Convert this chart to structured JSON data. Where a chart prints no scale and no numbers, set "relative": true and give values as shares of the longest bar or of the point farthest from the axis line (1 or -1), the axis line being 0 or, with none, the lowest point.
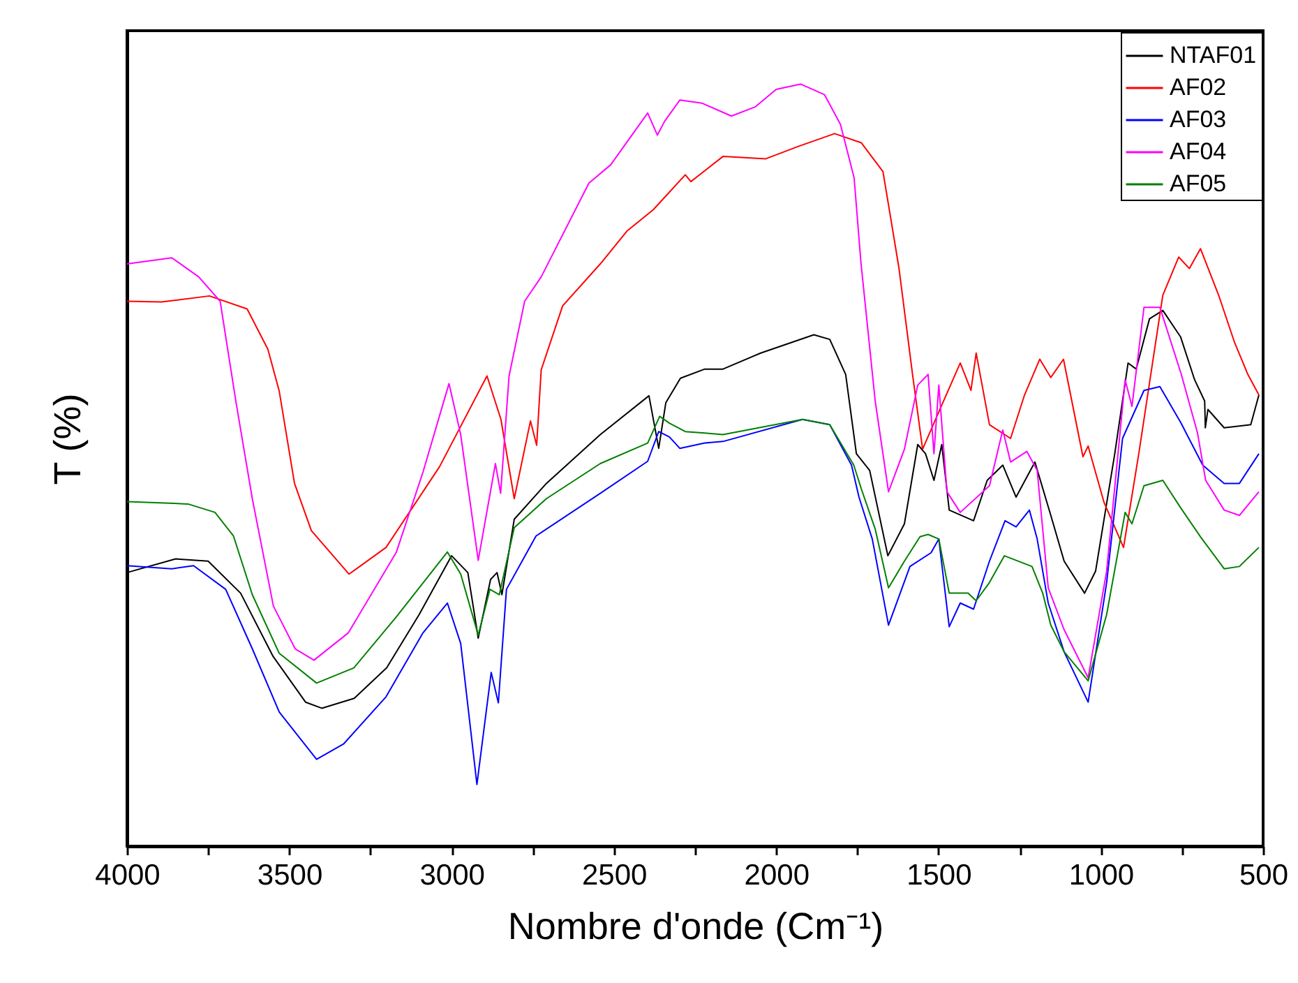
{
  "chart_data": {
    "type": "line",
    "xlabel": "Nombre d'onde (Cm⁻¹)",
    "ylabel": "T (%)",
    "relative": true,
    "grid": false,
    "legend": "top right",
    "xlim": [
      4000,
      500
    ],
    "xticks": [
      4000,
      {
        "value": 3750,
        "label": null
      },
      3500,
      {
        "value": 3250,
        "label": null
      },
      3000,
      {
        "value": 2750,
        "label": null
      },
      2500,
      {
        "value": 2250,
        "label": null
      },
      2000,
      {
        "value": 1750,
        "label": null
      },
      1500,
      {
        "value": 1250,
        "label": null
      },
      1000,
      {
        "value": 750,
        "label": null
      },
      500
    ],
    "series": [
      {
        "name": "NTAF01",
        "color": "#000000",
        "x": [
          4000,
          3850,
          3750,
          3650,
          3550,
          3450,
          3400,
          3300,
          3200,
          3100,
          3000,
          2950,
          2918,
          2880,
          2860,
          2845,
          2807,
          2708,
          2542,
          2392,
          2362,
          2340,
          2295,
          2220,
          2164,
          2048,
          1884,
          1835,
          1786,
          1753,
          1712,
          1656,
          1605,
          1564,
          1540,
          1514,
          1490,
          1467,
          1392,
          1350,
          1302,
          1261,
          1203,
          1154,
          1113,
          1050,
          1016,
          957,
          916,
          891,
          850,
          809,
          754,
          711,
          680,
          678,
          670,
          620,
          538,
          513
        ],
        "values": [
          0.359,
          0.377,
          0.374,
          0.332,
          0.249,
          0.189,
          0.181,
          0.194,
          0.234,
          0.304,
          0.381,
          0.359,
          0.273,
          0.35,
          0.359,
          0.33,
          0.429,
          0.476,
          0.54,
          0.591,
          0.522,
          0.582,
          0.614,
          0.626,
          0.626,
          0.647,
          0.671,
          0.665,
          0.619,
          0.515,
          0.493,
          0.381,
          0.423,
          0.527,
          0.515,
          0.48,
          0.527,
          0.441,
          0.427,
          0.48,
          0.5,
          0.458,
          0.504,
          0.434,
          0.374,
          0.332,
          0.361,
          0.515,
          0.634,
          0.626,
          0.692,
          0.703,
          0.668,
          0.612,
          0.584,
          0.549,
          0.573,
          0.549,
          0.553,
          0.592
        ]
      },
      {
        "name": "AF02",
        "color": "#ff0000",
        "x": [
          4000,
          3894,
          3746,
          3630,
          3566,
          3531,
          3484,
          3432,
          3316,
          3202,
          3037,
          2891,
          2848,
          2807,
          2757,
          2738,
          2724,
          2658,
          2542,
          2460,
          2379,
          2280,
          2263,
          2164,
          2032,
          1933,
          1820,
          1738,
          1671,
          1622,
          1580,
          1549,
          1499,
          1433,
          1400,
          1384,
          1343,
          1278,
          1235,
          1188,
          1154,
          1115,
          1055,
          1039,
          990,
          930,
          883,
          809,
          760,
          727,
          693,
          637,
          588,
          547,
          513
        ],
        "values": [
          0.715,
          0.714,
          0.722,
          0.705,
          0.652,
          0.597,
          0.476,
          0.414,
          0.357,
          0.392,
          0.498,
          0.617,
          0.56,
          0.456,
          0.558,
          0.526,
          0.625,
          0.709,
          0.764,
          0.807,
          0.835,
          0.881,
          0.872,
          0.905,
          0.902,
          0.918,
          0.935,
          0.923,
          0.885,
          0.759,
          0.619,
          0.521,
          0.57,
          0.634,
          0.598,
          0.647,
          0.553,
          0.535,
          0.592,
          0.639,
          0.615,
          0.639,
          0.511,
          0.525,
          0.451,
          0.392,
          0.515,
          0.723,
          0.773,
          0.758,
          0.784,
          0.723,
          0.661,
          0.619,
          0.592
        ]
      },
      {
        "name": "AF03",
        "color": "#0000ff",
        "x": [
          4000,
          3862,
          3795,
          3696,
          3614,
          3531,
          3416,
          3333,
          3202,
          3088,
          3013,
          2972,
          2922,
          2878,
          2856,
          2831,
          2740,
          2542,
          2396,
          2362,
          2329,
          2297,
          2220,
          2164,
          1919,
          1835,
          1768,
          1745,
          1704,
          1654,
          1588,
          1523,
          1499,
          1467,
          1433,
          1392,
          1343,
          1295,
          1261,
          1220,
          1196,
          1162,
          1113,
          1039,
          982,
          933,
          867,
          818,
          754,
          686,
          620,
          573,
          513
        ],
        "values": [
          0.368,
          0.364,
          0.368,
          0.337,
          0.259,
          0.176,
          0.114,
          0.134,
          0.196,
          0.28,
          0.319,
          0.266,
          0.081,
          0.228,
          0.188,
          0.337,
          0.407,
          0.463,
          0.505,
          0.544,
          0.537,
          0.522,
          0.529,
          0.531,
          0.56,
          0.553,
          0.5,
          0.458,
          0.403,
          0.29,
          0.367,
          0.385,
          0.403,
          0.288,
          0.319,
          0.311,
          0.374,
          0.427,
          0.419,
          0.441,
          0.403,
          0.319,
          0.255,
          0.189,
          0.346,
          0.535,
          0.598,
          0.603,
          0.556,
          0.5,
          0.476,
          0.476,
          0.515
        ]
      },
      {
        "name": "AF04",
        "color": "#ff00ff",
        "x": [
          4000,
          3862,
          3779,
          3713,
          3664,
          3614,
          3549,
          3482,
          3424,
          3318,
          3170,
          3088,
          3008,
          2972,
          2918,
          2865,
          2849,
          2823,
          2775,
          2724,
          2577,
          2510,
          2396,
          2366,
          2344,
          2297,
          2229,
          2138,
          2065,
          2000,
          1925,
          1851,
          1802,
          1760,
          1739,
          1695,
          1654,
          1605,
          1564,
          1532,
          1514,
          1499,
          1474,
          1433,
          1343,
          1302,
          1278,
          1228,
          1196,
          1162,
          1113,
          1039,
          982,
          925,
          904,
          867,
          818,
          752,
          702,
          677,
          620,
          573,
          513
        ],
        "values": [
          0.764,
          0.772,
          0.747,
          0.715,
          0.582,
          0.456,
          0.315,
          0.259,
          0.244,
          0.28,
          0.386,
          0.491,
          0.607,
          0.54,
          0.375,
          0.502,
          0.463,
          0.617,
          0.715,
          0.747,
          0.87,
          0.894,
          0.962,
          0.933,
          0.951,
          0.979,
          0.975,
          0.958,
          0.97,
          0.993,
          1.0,
          0.986,
          0.947,
          0.877,
          0.766,
          0.584,
          0.465,
          0.521,
          0.605,
          0.619,
          0.515,
          0.605,
          0.465,
          0.438,
          0.473,
          0.546,
          0.504,
          0.518,
          0.493,
          0.339,
          0.284,
          0.221,
          0.361,
          0.612,
          0.577,
          0.707,
          0.707,
          0.619,
          0.542,
          0.48,
          0.441,
          0.434,
          0.465
        ]
      },
      {
        "name": "AF05",
        "color": "#008000",
        "x": [
          4000,
          3812,
          3729,
          3672,
          3614,
          3531,
          3416,
          3301,
          3170,
          3013,
          2972,
          2918,
          2882,
          2853,
          2807,
          2708,
          2542,
          2396,
          2359,
          2329,
          2280,
          2220,
          2164,
          1919,
          1835,
          1761,
          1738,
          1695,
          1654,
          1605,
          1557,
          1532,
          1499,
          1467,
          1409,
          1384,
          1343,
          1297,
          1212,
          1179,
          1154,
          1113,
          1039,
          982,
          925,
          904,
          867,
          809,
          754,
          693,
          620,
          573,
          513
        ],
        "values": [
          0.452,
          0.449,
          0.438,
          0.407,
          0.33,
          0.253,
          0.214,
          0.234,
          0.301,
          0.386,
          0.357,
          0.277,
          0.337,
          0.33,
          0.418,
          0.456,
          0.502,
          0.529,
          0.564,
          0.555,
          0.544,
          0.542,
          0.54,
          0.56,
          0.553,
          0.5,
          0.469,
          0.416,
          0.339,
          0.374,
          0.406,
          0.409,
          0.403,
          0.332,
          0.332,
          0.322,
          0.346,
          0.381,
          0.367,
          0.332,
          0.29,
          0.255,
          0.217,
          0.304,
          0.438,
          0.423,
          0.473,
          0.48,
          0.444,
          0.406,
          0.364,
          0.367,
          0.392
        ]
      }
    ]
  }
}
